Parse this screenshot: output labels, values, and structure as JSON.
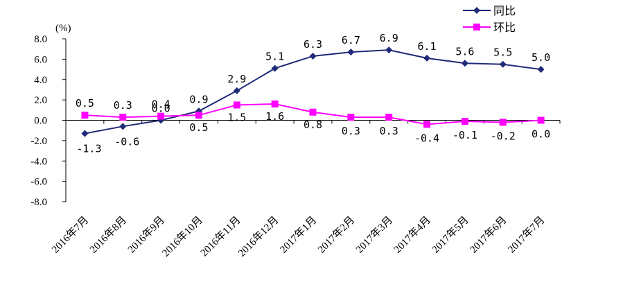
{
  "chart_data": {
    "type": "line",
    "title": "",
    "ylabel": "(%)",
    "xlabel": "",
    "ylim": [
      -8.0,
      8.0
    ],
    "yticks": [
      "8.0",
      "6.0",
      "4.0",
      "2.0",
      "0.0",
      "-2.0",
      "-4.0",
      "-6.0",
      "-8.0"
    ],
    "ytick_values": [
      8,
      6,
      4,
      2,
      0,
      -2,
      -4,
      -6,
      -8
    ],
    "categories": [
      "2016年7月",
      "2016年8月",
      "2016年9月",
      "2016年10月",
      "2016年11月",
      "2016年12月",
      "2017年1月",
      "2017年2月",
      "2017年3月",
      "2017年4月",
      "2017年5月",
      "2017年6月",
      "2017年7月"
    ],
    "legend_position": "top-right",
    "series": [
      {
        "name": "同比",
        "color": "#1F2A78",
        "marker": "diamond",
        "values": [
          -1.3,
          -0.6,
          0.0,
          0.9,
          2.9,
          5.1,
          6.3,
          6.7,
          6.9,
          6.1,
          5.6,
          5.5,
          5.0
        ],
        "labels": [
          "-1.3",
          "-0.6",
          "0.0",
          "0.9",
          "2.9",
          "5.1",
          "6.3",
          "6.7",
          "6.9",
          "6.1",
          "5.6",
          "5.5",
          "5.0"
        ]
      },
      {
        "name": "环比",
        "color": "#FF00FF",
        "marker": "square",
        "values": [
          0.5,
          0.3,
          0.4,
          0.5,
          1.5,
          1.6,
          0.8,
          0.3,
          0.3,
          -0.4,
          -0.1,
          -0.2,
          0.0
        ],
        "labels": [
          "0.5",
          "0.3",
          "0.4",
          "0.5",
          "1.5",
          "1.6",
          "0.8",
          "0.3",
          "0.3",
          "-0.4",
          "-0.1",
          "-0.2",
          "0.0"
        ]
      }
    ]
  }
}
